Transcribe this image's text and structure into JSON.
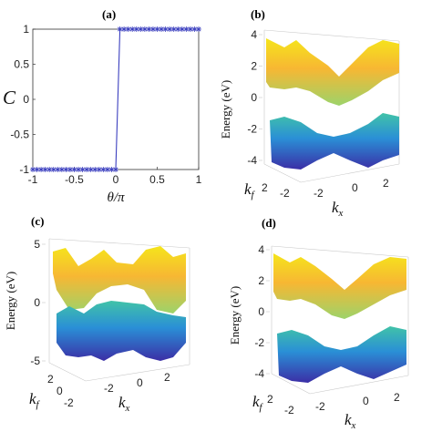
{
  "chart_data": [
    {
      "panel": "(a)",
      "type": "line",
      "ylabel": "C",
      "xlabel": "θ/π",
      "xlim": [
        -1,
        1
      ],
      "ylim": [
        -1,
        1
      ],
      "xticks": [
        "-1",
        "-0.5",
        "0",
        "0.5",
        "1"
      ],
      "yticks": [
        "-1",
        "-0.5",
        "0",
        "0.5",
        "1"
      ],
      "series": [
        {
          "marker": "star",
          "color": "#3b3fbf",
          "x": [
            -1,
            -0.95,
            -0.9,
            -0.85,
            -0.8,
            -0.75,
            -0.7,
            -0.65,
            -0.6,
            -0.55,
            -0.5,
            -0.45,
            -0.4,
            -0.35,
            -0.3,
            -0.25,
            -0.2,
            -0.15,
            -0.1,
            -0.05,
            0,
            0.05,
            0.1,
            0.15,
            0.2,
            0.25,
            0.3,
            0.35,
            0.4,
            0.45,
            0.5,
            0.55,
            0.6,
            0.65,
            0.7,
            0.75,
            0.8,
            0.85,
            0.9,
            0.95,
            1
          ],
          "values": [
            -1,
            -1,
            -1,
            -1,
            -1,
            -1,
            -1,
            -1,
            -1,
            -1,
            -1,
            -1,
            -1,
            -1,
            -1,
            -1,
            -1,
            -1,
            -1,
            -1,
            -1,
            1,
            1,
            1,
            1,
            1,
            1,
            1,
            1,
            1,
            1,
            1,
            1,
            1,
            1,
            1,
            1,
            1,
            1,
            1,
            1
          ]
        }
      ]
    },
    {
      "panel": "(b)",
      "type": "surface",
      "ylabel": "Energy (eV)",
      "xlabel": "k_x",
      "zlabel": "k_f",
      "zticks": [
        "4",
        "2",
        "0",
        "-2",
        "-4"
      ],
      "kx_ticks": [
        "-2",
        "0",
        "2"
      ],
      "kf_ticks": [
        "2",
        "-2"
      ]
    },
    {
      "panel": "(c)",
      "type": "surface",
      "ylabel": "Energy (eV)",
      "xlabel": "k_x",
      "zlabel": "k_f",
      "zticks": [
        "5",
        "0",
        "-5"
      ],
      "kx_ticks": [
        "-2",
        "0",
        "2"
      ],
      "kf_ticks": [
        "2",
        "0",
        "-2"
      ]
    },
    {
      "panel": "(d)",
      "type": "surface",
      "ylabel": "Energy (eV)",
      "xlabel": "k_x",
      "zlabel": "k_f",
      "zticks": [
        "4",
        "2",
        "0",
        "-2",
        "-4"
      ],
      "kx_ticks": [
        "-2",
        "0",
        "2"
      ],
      "kf_ticks": [
        "2",
        "-2"
      ]
    }
  ],
  "colors": {
    "upper_top": "#f5e51b",
    "upper_mid": "#f7b733",
    "upper_low": "#9cd36a",
    "lower_top": "#41c3a8",
    "lower_mid": "#2a8fd6",
    "lower_low": "#3b2ea6",
    "line": "#3b3fbf"
  }
}
